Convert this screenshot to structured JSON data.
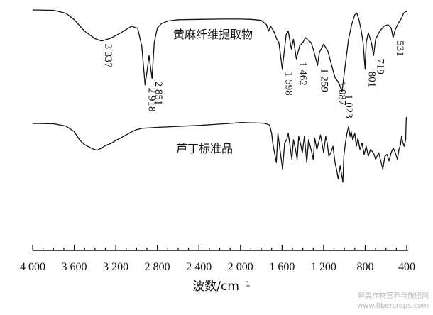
{
  "chart_data": {
    "type": "line",
    "title": "",
    "xlabel": "波数/cm⁻¹",
    "ylabel": "",
    "xlim": [
      4000,
      400
    ],
    "x_reversed": true,
    "x_ticks": [
      4000,
      3600,
      3200,
      2800,
      2400,
      2000,
      1600,
      1200,
      800,
      400
    ],
    "x_tick_labels": [
      "4 000",
      "3 600",
      "3 200",
      "2 800",
      "2 400",
      "2 000",
      "1 600",
      "1 200",
      "800",
      "400"
    ],
    "grid": false,
    "series": [
      {
        "name": "黄麻纤维提取物",
        "points": [
          [
            4000,
            0.0
          ],
          [
            3800,
            0.1
          ],
          [
            3680,
            1.0
          ],
          [
            3600,
            3.0
          ],
          [
            3500,
            6.5
          ],
          [
            3400,
            8.8
          ],
          [
            3337,
            9.5
          ],
          [
            3250,
            8.7
          ],
          [
            3150,
            7.0
          ],
          [
            3050,
            5.0
          ],
          [
            2990,
            5.6
          ],
          [
            2950,
            11.0
          ],
          [
            2918,
            23.0
          ],
          [
            2900,
            19.0
          ],
          [
            2880,
            14.0
          ],
          [
            2851,
            21.0
          ],
          [
            2830,
            10.0
          ],
          [
            2800,
            5.5
          ],
          [
            2760,
            4.2
          ],
          [
            2700,
            3.4
          ],
          [
            2600,
            3.0
          ],
          [
            2400,
            2.9
          ],
          [
            2200,
            2.8
          ],
          [
            2000,
            2.8
          ],
          [
            1900,
            2.9
          ],
          [
            1800,
            3.2
          ],
          [
            1750,
            4.5
          ],
          [
            1730,
            6.5
          ],
          [
            1710,
            5.0
          ],
          [
            1680,
            6.5
          ],
          [
            1650,
            9.0
          ],
          [
            1630,
            10.0
          ],
          [
            1598,
            18.0
          ],
          [
            1580,
            13.0
          ],
          [
            1560,
            7.5
          ],
          [
            1540,
            6.5
          ],
          [
            1510,
            12.0
          ],
          [
            1490,
            9.0
          ],
          [
            1462,
            15.0
          ],
          [
            1430,
            11.0
          ],
          [
            1400,
            10.0
          ],
          [
            1375,
            8.5
          ],
          [
            1340,
            9.5
          ],
          [
            1320,
            10.0
          ],
          [
            1300,
            12.0
          ],
          [
            1259,
            17.0
          ],
          [
            1240,
            13.0
          ],
          [
            1200,
            10.5
          ],
          [
            1160,
            12.5
          ],
          [
            1110,
            18.5
          ],
          [
            1087,
            21.0
          ],
          [
            1060,
            22.0
          ],
          [
            1040,
            23.5
          ],
          [
            1023,
            25.0
          ],
          [
            1000,
            19.0
          ],
          [
            960,
            9.0
          ],
          [
            930,
            4.5
          ],
          [
            900,
            1.5
          ],
          [
            880,
            1.0
          ],
          [
            860,
            3.0
          ],
          [
            840,
            6.0
          ],
          [
            820,
            10.0
          ],
          [
            801,
            18.0
          ],
          [
            790,
            10.0
          ],
          [
            770,
            7.0
          ],
          [
            740,
            10.0
          ],
          [
            719,
            14.0
          ],
          [
            700,
            9.0
          ],
          [
            660,
            6.5
          ],
          [
            620,
            5.0
          ],
          [
            580,
            4.5
          ],
          [
            550,
            5.5
          ],
          [
            531,
            8.5
          ],
          [
            510,
            6.0
          ],
          [
            480,
            4.0
          ],
          [
            450,
            2.5
          ],
          [
            430,
            1.0
          ],
          [
            410,
            0.5
          ],
          [
            400,
            0.5
          ]
        ]
      },
      {
        "name": "芦丁标准品",
        "points": [
          [
            4000,
            0.0
          ],
          [
            3800,
            0.1
          ],
          [
            3680,
            0.8
          ],
          [
            3600,
            2.5
          ],
          [
            3550,
            5.0
          ],
          [
            3500,
            6.5
          ],
          [
            3420,
            7.8
          ],
          [
            3380,
            8.2
          ],
          [
            3340,
            7.6
          ],
          [
            3300,
            6.8
          ],
          [
            3240,
            6.0
          ],
          [
            3200,
            5.2
          ],
          [
            3150,
            4.4
          ],
          [
            3100,
            3.5
          ],
          [
            3050,
            2.6
          ],
          [
            3000,
            1.9
          ],
          [
            2950,
            1.5
          ],
          [
            2900,
            1.4
          ],
          [
            2800,
            1.2
          ],
          [
            2600,
            0.9
          ],
          [
            2400,
            0.6
          ],
          [
            2200,
            0.2
          ],
          [
            2100,
            0.0
          ],
          [
            2000,
            -0.3
          ],
          [
            1900,
            -0.2
          ],
          [
            1800,
            -0.1
          ],
          [
            1760,
            0.0
          ],
          [
            1720,
            0.5
          ],
          [
            1700,
            3.0
          ],
          [
            1690,
            6.0
          ],
          [
            1655,
            12.0
          ],
          [
            1640,
            3.0
          ],
          [
            1620,
            8.0
          ],
          [
            1595,
            14.0
          ],
          [
            1575,
            6.0
          ],
          [
            1555,
            5.0
          ],
          [
            1540,
            3.0
          ],
          [
            1520,
            7.5
          ],
          [
            1505,
            11.0
          ],
          [
            1490,
            5.0
          ],
          [
            1470,
            8.0
          ],
          [
            1455,
            11.0
          ],
          [
            1440,
            4.0
          ],
          [
            1420,
            6.5
          ],
          [
            1405,
            9.0
          ],
          [
            1385,
            4.0
          ],
          [
            1362,
            12.0
          ],
          [
            1345,
            5.0
          ],
          [
            1320,
            8.0
          ],
          [
            1300,
            11.0
          ],
          [
            1285,
            4.5
          ],
          [
            1265,
            8.0
          ],
          [
            1230,
            3.5
          ],
          [
            1210,
            7.0
          ],
          [
            1200,
            9.0
          ],
          [
            1180,
            4.0
          ],
          [
            1165,
            6.0
          ],
          [
            1150,
            10.0
          ],
          [
            1130,
            9.0
          ],
          [
            1110,
            7.0
          ],
          [
            1090,
            12.0
          ],
          [
            1070,
            15.0
          ],
          [
            1060,
            17.0
          ],
          [
            1040,
            13.0
          ],
          [
            1015,
            18.0
          ],
          [
            1005,
            10.0
          ],
          [
            990,
            6.0
          ],
          [
            975,
            3.0
          ],
          [
            960,
            1.0
          ],
          [
            945,
            4.0
          ],
          [
            935,
            2.5
          ],
          [
            920,
            5.0
          ],
          [
            900,
            3.0
          ],
          [
            885,
            7.0
          ],
          [
            870,
            4.5
          ],
          [
            850,
            8.0
          ],
          [
            830,
            6.0
          ],
          [
            810,
            9.5
          ],
          [
            790,
            7.0
          ],
          [
            770,
            10.0
          ],
          [
            750,
            8.0
          ],
          [
            720,
            9.0
          ],
          [
            700,
            11.0
          ],
          [
            670,
            9.0
          ],
          [
            650,
            11.5
          ],
          [
            630,
            14.0
          ],
          [
            610,
            10.0
          ],
          [
            590,
            9.5
          ],
          [
            570,
            11.5
          ],
          [
            550,
            9.0
          ],
          [
            530,
            7.5
          ],
          [
            510,
            9.0
          ],
          [
            490,
            11.0
          ],
          [
            475,
            8.0
          ],
          [
            460,
            6.5
          ],
          [
            450,
            4.0
          ],
          [
            440,
            5.5
          ],
          [
            425,
            7.0
          ],
          [
            410,
            5.0
          ],
          [
            405,
            -1.5
          ],
          [
            400,
            -2.0
          ]
        ]
      }
    ],
    "peak_labels": [
      {
        "x": 3337,
        "text": "3 337",
        "series": 0
      },
      {
        "x": 2918,
        "text": "2 918",
        "series": 0
      },
      {
        "x": 2851,
        "text": "2 851",
        "series": 0
      },
      {
        "x": 1598,
        "text": "1 598",
        "series": 0
      },
      {
        "x": 1462,
        "text": "1 462",
        "series": 0
      },
      {
        "x": 1259,
        "text": "1 259",
        "series": 0
      },
      {
        "x": 1087,
        "text": "1 087",
        "series": 0
      },
      {
        "x": 1023,
        "text": "1 023",
        "series": 0
      },
      {
        "x": 801,
        "text": "801",
        "series": 0
      },
      {
        "x": 719,
        "text": "719",
        "series": 0
      },
      {
        "x": 531,
        "text": "531",
        "series": 0
      }
    ]
  },
  "watermark": "麻类作物营养与施肥网\nwww.fibercrops.com"
}
